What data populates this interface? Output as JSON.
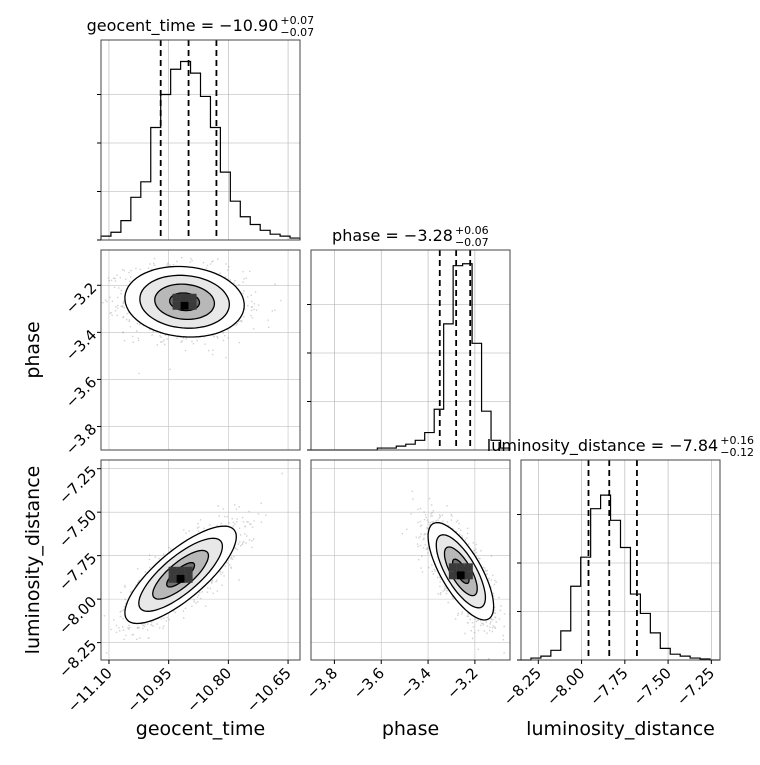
{
  "chart_data": {
    "type": "corner",
    "parameters": [
      {
        "name": "geocent_time",
        "title_name": "geocent_time",
        "title_value": "−10.90",
        "title_plus": "+0.07",
        "title_minus": "−0.07",
        "range": [
          -11.12,
          -10.62
        ],
        "ticks": [
          -11.1,
          -10.95,
          -10.8,
          -10.65
        ],
        "tick_labels": [
          "−11.10",
          "−10.95",
          "−10.80",
          "−10.65"
        ],
        "quantiles": [
          -10.97,
          -10.9,
          -10.83
        ],
        "hist": [
          0.02,
          0.04,
          0.1,
          0.22,
          0.3,
          0.58,
          0.75,
          0.88,
          0.92,
          0.86,
          0.74,
          0.58,
          0.35,
          0.2,
          0.12,
          0.08,
          0.05,
          0.03,
          0.02,
          0.01
        ]
      },
      {
        "name": "phase",
        "title_name": "phase",
        "title_value": "−3.28",
        "title_plus": "+0.06",
        "title_minus": "−0.07",
        "range": [
          -3.9,
          -3.05
        ],
        "ticks": [
          -3.8,
          -3.6,
          -3.4,
          -3.2
        ],
        "tick_labels": [
          "−3.8",
          "−3.6",
          "−3.4",
          "−3.2"
        ],
        "quantiles": [
          -3.35,
          -3.28,
          -3.22
        ],
        "hist": [
          0.0,
          0.0,
          0.0,
          0.0,
          0.0,
          0.0,
          0.0,
          0.01,
          0.01,
          0.02,
          0.03,
          0.05,
          0.09,
          0.21,
          0.65,
          0.95,
          0.96,
          0.55,
          0.2,
          0.05,
          0.01
        ]
      },
      {
        "name": "luminosity_distance",
        "title_name": "luminosity_distance",
        "title_value": "−7.84",
        "title_plus": "+0.16",
        "title_minus": "−0.12",
        "range": [
          -8.35,
          -7.2
        ],
        "ticks": [
          -8.25,
          -8.0,
          -7.75,
          -7.5,
          -7.25
        ],
        "tick_labels": [
          "−8.25",
          "−8.00",
          "−7.75",
          "−7.50",
          "−7.25"
        ],
        "quantiles": [
          -7.96,
          -7.84,
          -7.68
        ],
        "hist": [
          0.0,
          0.01,
          0.02,
          0.05,
          0.15,
          0.38,
          0.53,
          0.78,
          0.85,
          0.72,
          0.58,
          0.34,
          0.24,
          0.14,
          0.06,
          0.03,
          0.02,
          0.01,
          0.005,
          0.0
        ]
      }
    ],
    "pairs": [
      {
        "x": "geocent_time",
        "y": "phase",
        "mean": [
          -10.91,
          -3.27
        ],
        "sd": [
          0.075,
          0.075
        ],
        "rho": -0.1
      },
      {
        "x": "geocent_time",
        "y": "luminosity_distance",
        "mean": [
          -10.92,
          -7.86
        ],
        "sd": [
          0.07,
          0.14
        ],
        "rho": 0.78
      },
      {
        "x": "phase",
        "y": "luminosity_distance",
        "mean": [
          -3.26,
          -7.84
        ],
        "sd": [
          0.07,
          0.14
        ],
        "rho": -0.72
      }
    ],
    "levels_sigma": [
      0.5,
      1.0,
      1.5,
      2.0
    ],
    "grid": true
  }
}
